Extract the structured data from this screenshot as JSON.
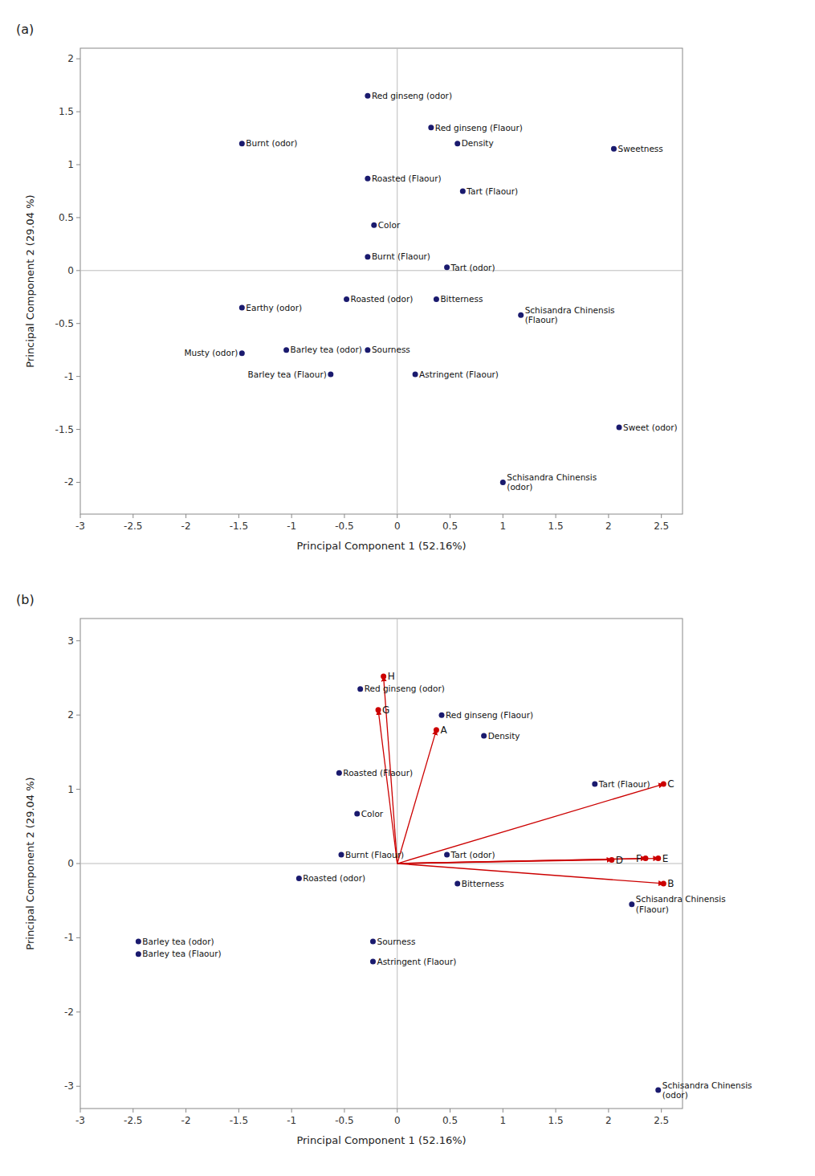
{
  "chart_data": [
    {
      "type": "scatter",
      "title": "(a)",
      "x_label": "Principal Component 1 (52.16%)",
      "y_label": "Principal Component 2 (29.04 %)",
      "xlim": [
        -3,
        2.7
      ],
      "ylim": [
        -2.3,
        2.1
      ],
      "xticks": [
        -3,
        -2.5,
        -2,
        -1.5,
        -1,
        -0.5,
        0,
        0.5,
        1,
        1.5,
        2,
        2.5
      ],
      "yticks": [
        -2,
        -1.5,
        -1,
        -0.5,
        0,
        0.5,
        1,
        1.5,
        2
      ],
      "grid": false,
      "series": [
        {
          "type": "scatter",
          "color": "#1a1a6e",
          "marker": "circle",
          "x": [
            -0.28,
            0.32,
            0.57,
            -1.47,
            2.05,
            -0.28,
            0.62,
            -0.22,
            -0.28,
            0.47,
            -0.48,
            0.37,
            -1.47,
            1.17,
            -1.05,
            -1.47,
            -0.28,
            -0.63,
            0.17,
            2.1,
            1.0
          ],
          "values": [
            1.65,
            1.35,
            1.2,
            1.2,
            1.15,
            0.87,
            0.75,
            0.43,
            0.13,
            0.03,
            -0.27,
            -0.27,
            -0.35,
            -0.42,
            -0.75,
            -0.78,
            -0.75,
            -0.98,
            -0.98,
            -1.48,
            -2.0
          ],
          "labels": [
            "Red ginseng (odor)",
            "Red ginseng (Flaour)",
            "Density",
            "Burnt (odor)",
            "Sweetness",
            "Roasted (Flaour)",
            "Tart (Flaour)",
            "Color",
            "Burnt (Flaour)",
            "Tart (odor)",
            "Roasted (odor)",
            "Bitterness",
            "Earthy (odor)",
            "Schisandra Chinensis\n(Flaour)",
            "Barley tea (odor)",
            "Musty (odor)",
            "Sourness",
            "Barley tea (Flaour)",
            "Astringent (Flaour)",
            "Sweet (odor)",
            "Schisandra Chinensis\n(odor)"
          ]
        }
      ]
    },
    {
      "type": "scatter",
      "title": "(b)",
      "x_label": "Principal Component 1 (52.16%)",
      "y_label": "Principal Component 2 (29.04 %)",
      "xlim": [
        -3,
        2.7
      ],
      "ylim": [
        -3.3,
        3.3
      ],
      "xticks": [
        -3,
        -2.5,
        -2,
        -1.5,
        -1,
        -0.5,
        0,
        0.5,
        1,
        1.5,
        2,
        2.5
      ],
      "yticks": [
        -3,
        -2,
        -1,
        0,
        1,
        2,
        3
      ],
      "grid": false,
      "series": [
        {
          "type": "scatter",
          "color": "#1a1a6e",
          "marker": "circle",
          "x": [
            -0.35,
            0.42,
            0.82,
            -0.55,
            1.87,
            -0.38,
            -0.53,
            0.47,
            -0.93,
            0.57,
            2.22,
            -2.45,
            -2.45,
            -0.23,
            -0.23,
            2.47
          ],
          "values": [
            2.35,
            2.0,
            1.72,
            1.22,
            1.07,
            0.67,
            0.12,
            0.12,
            -0.2,
            -0.27,
            -0.55,
            -1.05,
            -1.22,
            -1.05,
            -1.32,
            -3.05
          ],
          "labels": [
            "Red ginseng (odor)",
            "Red ginseng (Flaour)",
            "Density",
            "Roasted (Flaour)",
            "Tart (Flaour)",
            "Color",
            "Burnt (Flaour)",
            "Tart (odor)",
            "Roasted (odor)",
            "Bitterness",
            "Schisandra Chinensis\n(Flaour)",
            "Barley tea (odor)",
            "Barley tea (Flaour)",
            "Sourness",
            "Astringent (Flaour)",
            "Schisandra Chinensis\n(odor)"
          ]
        },
        {
          "type": "arrow",
          "color": "#cc0000",
          "marker": "circle",
          "x": [
            -0.13,
            -0.18,
            0.37,
            2.52,
            2.47,
            2.35,
            2.03,
            2.52
          ],
          "values": [
            2.52,
            2.07,
            1.8,
            1.07,
            0.07,
            0.07,
            0.05,
            -0.27
          ],
          "labels": [
            "H",
            "G",
            "A",
            "C",
            "E",
            "F",
            "D",
            "B"
          ]
        }
      ]
    }
  ]
}
